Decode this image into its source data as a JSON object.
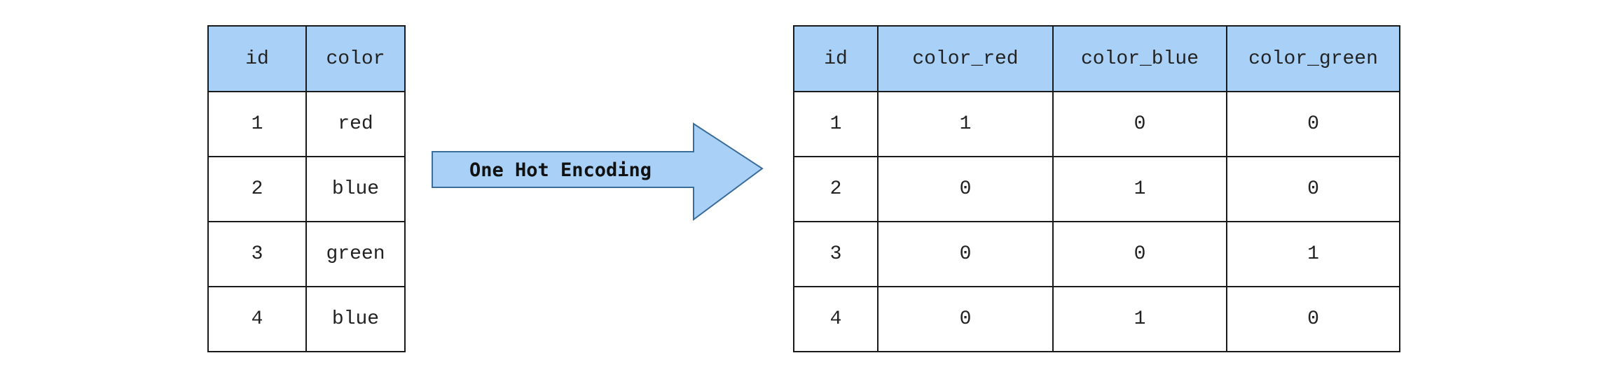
{
  "input_table": {
    "headers": [
      "id",
      "color"
    ],
    "rows": [
      [
        "1",
        "red"
      ],
      [
        "2",
        "blue"
      ],
      [
        "3",
        "green"
      ],
      [
        "4",
        "blue"
      ]
    ]
  },
  "arrow": {
    "label": "One Hot Encoding",
    "fill_color": "#a9d1f7"
  },
  "output_table": {
    "headers": [
      "id",
      "color_red",
      "color_blue",
      "color_green"
    ],
    "rows": [
      [
        "1",
        "1",
        "0",
        "0"
      ],
      [
        "2",
        "0",
        "1",
        "0"
      ],
      [
        "3",
        "0",
        "0",
        "1"
      ],
      [
        "4",
        "0",
        "1",
        "0"
      ]
    ]
  },
  "colors": {
    "header_background": "#a9d1f7",
    "border": "#1a1a1a"
  }
}
